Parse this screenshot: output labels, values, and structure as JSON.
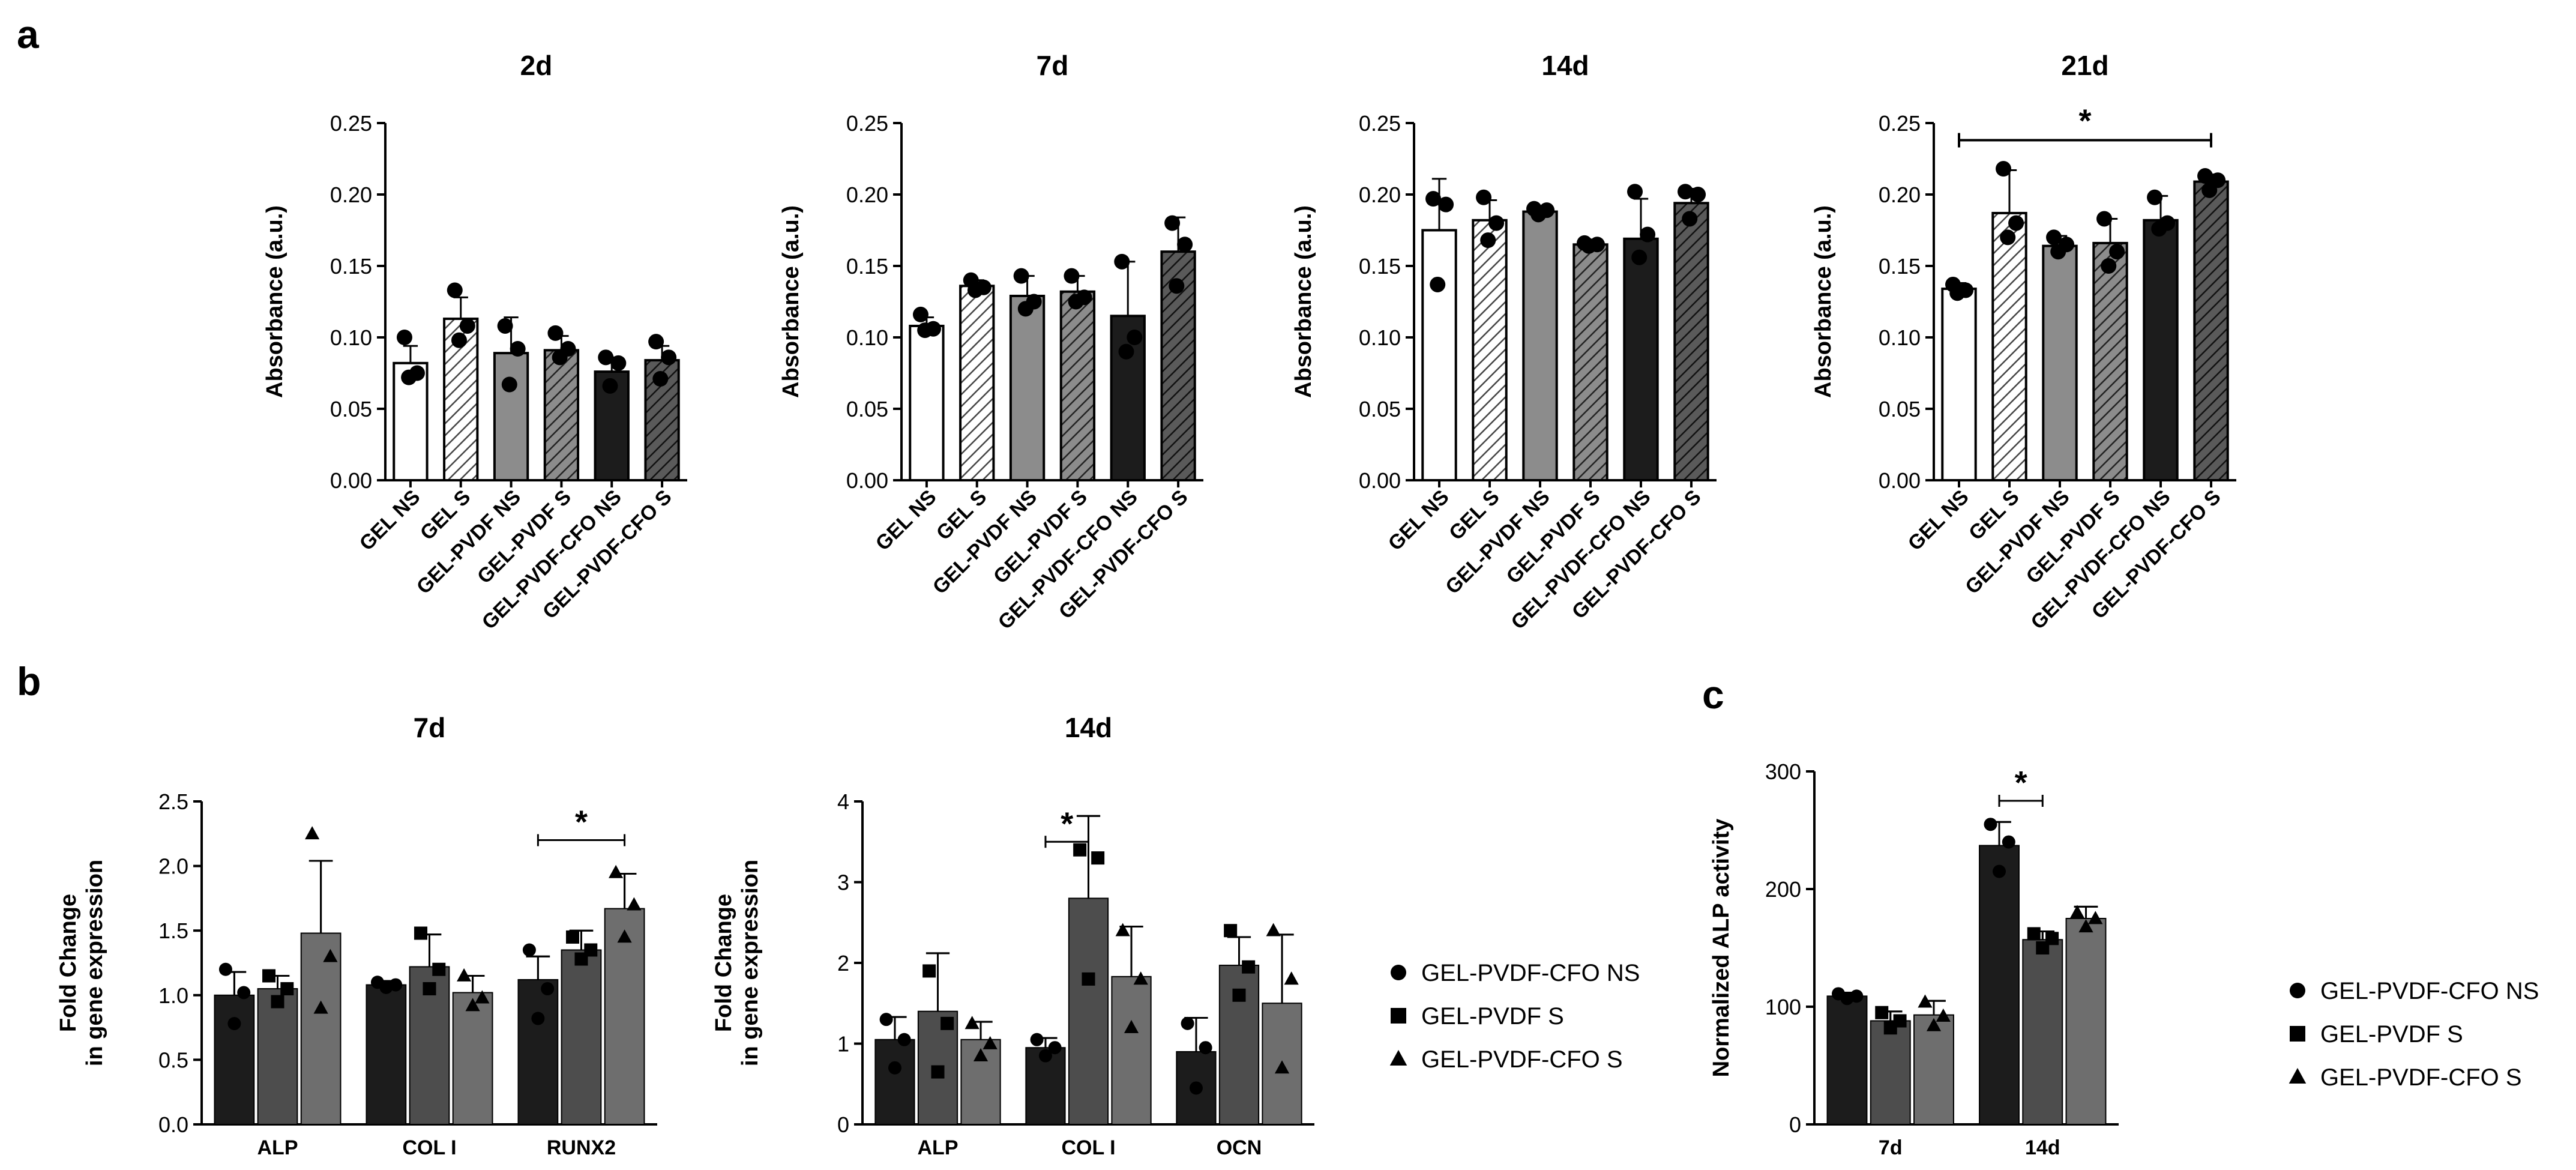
{
  "panels": {
    "a": "a",
    "b": "b",
    "c": "c"
  },
  "colors": {
    "white": "#ffffff",
    "light": "#d9d9d9",
    "mid": "#8c8c8c",
    "midDark": "#5a5a5a",
    "dark": "#1c1c1c",
    "grey2": "#4d4d4d",
    "grey3": "#6e6e6e"
  },
  "legend": [
    {
      "label": "GEL-PVDF-CFO NS",
      "marker": "circle"
    },
    {
      "label": "GEL-PVDF S",
      "marker": "square"
    },
    {
      "label": "GEL-PVDF-CFO S",
      "marker": "triangle"
    }
  ],
  "chart_data": [
    {
      "id": "a-2d",
      "type": "bar",
      "title": "2d",
      "ylabel": "Absorbance (a.u.)",
      "ylim": [
        0,
        0.25
      ],
      "yticks": [
        "0.00",
        "0.05",
        "0.10",
        "0.15",
        "0.20",
        "0.25"
      ],
      "categories": [
        "GEL NS",
        "GEL S",
        "GEL-PVDF NS",
        "GEL-PVDF S",
        "GEL-PVDF-CFO NS",
        "GEL-PVDF-CFO S"
      ],
      "values": [
        0.082,
        0.113,
        0.089,
        0.091,
        0.076,
        0.084
      ],
      "errors": [
        0.012,
        0.015,
        0.025,
        0.01,
        0.01,
        0.01
      ],
      "points": [
        [
          0.1,
          0.075,
          0.072
        ],
        [
          0.133,
          0.108,
          0.098
        ],
        [
          0.108,
          0.092,
          0.067
        ],
        [
          0.103,
          0.092,
          0.086
        ],
        [
          0.086,
          0.082,
          0.066
        ],
        [
          0.097,
          0.086,
          0.071
        ]
      ],
      "fills": [
        "white",
        "hatch-light",
        "mid",
        "hatch-mid",
        "dark",
        "hatch-dark"
      ],
      "sig": null
    },
    {
      "id": "a-7d",
      "type": "bar",
      "title": "7d",
      "ylabel": "Absorbance (a.u.)",
      "ylim": [
        0,
        0.25
      ],
      "yticks": [
        "0.00",
        "0.05",
        "0.10",
        "0.15",
        "0.20",
        "0.25"
      ],
      "categories": [
        "GEL NS",
        "GEL S",
        "GEL-PVDF NS",
        "GEL-PVDF S",
        "GEL-PVDF-CFO NS",
        "GEL-PVDF-CFO S"
      ],
      "values": [
        0.108,
        0.136,
        0.129,
        0.132,
        0.115,
        0.16
      ],
      "errors": [
        0.006,
        0.004,
        0.014,
        0.011,
        0.038,
        0.024
      ],
      "points": [
        [
          0.116,
          0.106,
          0.105
        ],
        [
          0.14,
          0.135,
          0.133
        ],
        [
          0.143,
          0.125,
          0.12
        ],
        [
          0.143,
          0.128,
          0.125
        ],
        [
          0.153,
          0.1,
          0.09
        ],
        [
          0.18,
          0.165,
          0.136
        ]
      ],
      "fills": [
        "white",
        "hatch-light",
        "mid",
        "hatch-mid",
        "dark",
        "hatch-dark"
      ],
      "sig": null
    },
    {
      "id": "a-14d",
      "type": "bar",
      "title": "14d",
      "ylabel": "Absorbance (a.u.)",
      "ylim": [
        0,
        0.25
      ],
      "yticks": [
        "0.00",
        "0.05",
        "0.10",
        "0.15",
        "0.20",
        "0.25"
      ],
      "categories": [
        "GEL NS",
        "GEL S",
        "GEL-PVDF NS",
        "GEL-PVDF S",
        "GEL-PVDF-CFO NS",
        "GEL-PVDF-CFO S"
      ],
      "values": [
        0.175,
        0.182,
        0.188,
        0.165,
        0.169,
        0.194
      ],
      "errors": [
        0.036,
        0.014,
        0.003,
        0.002,
        0.028,
        0.01
      ],
      "points": [
        [
          0.197,
          0.193,
          0.137
        ],
        [
          0.198,
          0.18,
          0.168
        ],
        [
          0.19,
          0.189,
          0.186
        ],
        [
          0.166,
          0.165,
          0.164
        ],
        [
          0.202,
          0.172,
          0.156
        ],
        [
          0.202,
          0.2,
          0.183
        ]
      ],
      "fills": [
        "white",
        "hatch-light",
        "mid",
        "hatch-mid",
        "dark",
        "hatch-dark"
      ],
      "sig": null
    },
    {
      "id": "a-21d",
      "type": "bar",
      "title": "21d",
      "ylabel": "Absorbance (a.u.)",
      "ylim": [
        0,
        0.25
      ],
      "yticks": [
        "0.00",
        "0.05",
        "0.10",
        "0.15",
        "0.20",
        "0.25"
      ],
      "categories": [
        "GEL NS",
        "GEL S",
        "GEL-PVDF NS",
        "GEL-PVDF S",
        "GEL-PVDF-CFO NS",
        "GEL-PVDF-CFO S"
      ],
      "values": [
        0.134,
        0.187,
        0.164,
        0.166,
        0.182,
        0.209
      ],
      "errors": [
        0.004,
        0.03,
        0.007,
        0.017,
        0.017,
        0.005
      ],
      "points": [
        [
          0.137,
          0.133,
          0.131
        ],
        [
          0.218,
          0.18,
          0.17
        ],
        [
          0.17,
          0.165,
          0.16
        ],
        [
          0.183,
          0.16,
          0.15
        ],
        [
          0.198,
          0.18,
          0.176
        ],
        [
          0.213,
          0.21,
          0.203
        ]
      ],
      "fills": [
        "white",
        "hatch-light",
        "mid",
        "hatch-mid",
        "dark",
        "hatch-dark"
      ],
      "sig": {
        "from": 0,
        "to": 5,
        "y": 0.238,
        "label": "*"
      }
    },
    {
      "id": "b-7d",
      "type": "grouped-bar",
      "title": "7d",
      "ylabel": [
        "Fold Change",
        "in gene expression"
      ],
      "ylim": [
        0,
        2.5
      ],
      "yticks": [
        "0.0",
        "0.5",
        "1.0",
        "1.5",
        "2.0",
        "2.5"
      ],
      "categories": [
        "ALP",
        "COL I",
        "RUNX2"
      ],
      "series": [
        {
          "name": "GEL-PVDF-CFO NS",
          "values": [
            1.0,
            1.08,
            1.12
          ],
          "errors": [
            0.18,
            0.03,
            0.18
          ],
          "points": [
            [
              1.2,
              1.02,
              0.78
            ],
            [
              1.1,
              1.08,
              1.06
            ],
            [
              1.35,
              1.05,
              0.82
            ]
          ]
        },
        {
          "name": "GEL-PVDF S",
          "values": [
            1.05,
            1.22,
            1.35
          ],
          "errors": [
            0.1,
            0.25,
            0.15
          ],
          "points": [
            [
              1.15,
              1.05,
              0.95
            ],
            [
              1.48,
              1.2,
              1.05
            ],
            [
              1.45,
              1.35,
              1.28
            ]
          ]
        },
        {
          "name": "GEL-PVDF-CFO S",
          "values": [
            1.48,
            1.02,
            1.67
          ],
          "errors": [
            0.56,
            0.13,
            0.27
          ],
          "points": [
            [
              2.25,
              1.3,
              0.9
            ],
            [
              1.15,
              0.98,
              0.92
            ],
            [
              1.95,
              1.7,
              1.45
            ]
          ]
        }
      ],
      "sig": {
        "from": [
          2,
          0
        ],
        "to": [
          2,
          2
        ],
        "y": 2.2,
        "label": "*"
      }
    },
    {
      "id": "b-14d",
      "type": "grouped-bar",
      "title": "14d",
      "ylabel": [
        "Fold Change",
        "in gene expression"
      ],
      "ylim": [
        0,
        4
      ],
      "yticks": [
        "0",
        "1",
        "2",
        "3",
        "4"
      ],
      "categories": [
        "ALP",
        "COL I",
        "OCN"
      ],
      "series": [
        {
          "name": "GEL-PVDF-CFO NS",
          "values": [
            1.05,
            0.95,
            0.9
          ],
          "errors": [
            0.28,
            0.12,
            0.42
          ],
          "points": [
            [
              1.3,
              1.05,
              0.7
            ],
            [
              1.05,
              0.95,
              0.85
            ],
            [
              1.25,
              0.95,
              0.45
            ]
          ]
        },
        {
          "name": "GEL-PVDF S",
          "values": [
            1.4,
            2.8,
            1.97
          ],
          "errors": [
            0.72,
            1.02,
            0.35
          ],
          "points": [
            [
              1.9,
              1.25,
              0.65
            ],
            [
              3.4,
              3.3,
              1.8
            ],
            [
              2.4,
              1.95,
              1.6
            ]
          ]
        },
        {
          "name": "GEL-PVDF-CFO S",
          "values": [
            1.05,
            1.83,
            1.5
          ],
          "errors": [
            0.22,
            0.62,
            0.85
          ],
          "points": [
            [
              1.25,
              1.0,
              0.85
            ],
            [
              2.4,
              1.8,
              1.2
            ],
            [
              2.4,
              1.8,
              0.7
            ]
          ]
        }
      ],
      "sig": {
        "from": [
          1,
          0
        ],
        "to": [
          1,
          1
        ],
        "y": 3.5,
        "label": "*"
      }
    },
    {
      "id": "c",
      "type": "grouped-bar",
      "title": "",
      "ylabel": [
        "Normalized ALP activity"
      ],
      "ylim": [
        0,
        300
      ],
      "yticks": [
        "0",
        "100",
        "200",
        "300"
      ],
      "categories": [
        "7d",
        "14d"
      ],
      "series": [
        {
          "name": "GEL-PVDF-CFO NS",
          "values": [
            109,
            237
          ],
          "errors": [
            3,
            20
          ],
          "points": [
            [
              111,
              109,
              107
            ],
            [
              255,
              240,
              215
            ]
          ]
        },
        {
          "name": "GEL-PVDF S",
          "values": [
            88,
            157
          ],
          "errors": [
            8,
            7
          ],
          "points": [
            [
              95,
              88,
              82
            ],
            [
              162,
              158,
              150
            ]
          ]
        },
        {
          "name": "GEL-PVDF-CFO S",
          "values": [
            93,
            175
          ],
          "errors": [
            12,
            10
          ],
          "points": [
            [
              104,
              92,
              84
            ],
            [
              180,
              175,
              168
            ]
          ]
        }
      ],
      "sig": {
        "from": [
          1,
          0
        ],
        "to": [
          1,
          1
        ],
        "y": 275,
        "label": "*"
      }
    }
  ]
}
